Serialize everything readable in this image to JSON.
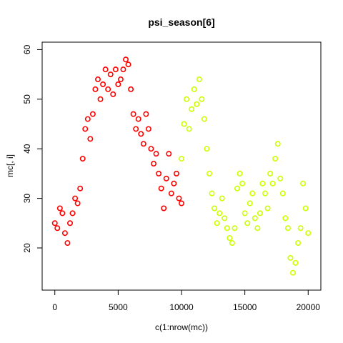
{
  "chart_data": {
    "type": "scatter",
    "title": "psi_season[6]",
    "xlabel": "c(1:nrow(mc))",
    "ylabel": "mc[, i]",
    "xlim": [
      -1000,
      21000
    ],
    "ylim": [
      11.5,
      61.5
    ],
    "x_ticks": [
      0,
      5000,
      10000,
      15000,
      20000
    ],
    "x_tick_labels": [
      "0",
      "5000",
      "10000",
      "15000",
      "20000"
    ],
    "y_ticks": [
      20,
      30,
      40,
      50,
      60
    ],
    "y_tick_labels": [
      "20",
      "30",
      "40",
      "50",
      "60"
    ],
    "grid": false,
    "legend": "none",
    "marker": "open-circle",
    "series": [
      {
        "color": "#ff0000",
        "x": [
          0,
          200,
          400,
          600,
          800,
          1000,
          1200,
          1400,
          1600,
          1800,
          2000,
          2200,
          2400,
          2600,
          2800,
          3000,
          3200,
          3400,
          3600,
          3800,
          4000,
          4200,
          4400,
          4600,
          4800,
          5000,
          5200,
          5400,
          5600,
          5800,
          6000,
          6200,
          6400,
          6600,
          6800,
          7000,
          7200,
          7400,
          7600,
          7800,
          8000,
          8200,
          8400,
          8600,
          8800,
          9000,
          9200,
          9400,
          9600,
          9800,
          10000
        ],
        "y": [
          25,
          24,
          28,
          27,
          23,
          21,
          25,
          27,
          30,
          29,
          32,
          38,
          44,
          46,
          42,
          47,
          52,
          54,
          50,
          53,
          56,
          52,
          55,
          51,
          56,
          53,
          54,
          56,
          58,
          57,
          52,
          47,
          44,
          46,
          43,
          41,
          47,
          44,
          40,
          37,
          39,
          35,
          32,
          28,
          34,
          39,
          31,
          33,
          35,
          30,
          29
        ]
      },
      {
        "color": "#ccff00",
        "x": [
          10000,
          10200,
          10400,
          10600,
          10800,
          11000,
          11200,
          11400,
          11600,
          11800,
          12000,
          12200,
          12400,
          12600,
          12800,
          13000,
          13200,
          13400,
          13600,
          13800,
          14000,
          14200,
          14400,
          14600,
          14800,
          15000,
          15200,
          15400,
          15600,
          15800,
          16000,
          16200,
          16400,
          16600,
          16800,
          17000,
          17200,
          17400,
          17600,
          17800,
          18000,
          18200,
          18400,
          18600,
          18800,
          19000,
          19200,
          19400,
          19600,
          19800,
          20000
        ],
        "y": [
          38,
          45,
          50,
          44,
          48,
          52,
          49,
          54,
          50,
          46,
          40,
          35,
          31,
          28,
          25,
          27,
          30,
          26,
          24,
          22,
          21,
          24,
          32,
          35,
          33,
          27,
          25,
          29,
          31,
          26,
          24,
          27,
          33,
          31,
          28,
          35,
          33,
          38,
          41,
          34,
          31,
          26,
          24,
          18,
          15,
          17,
          21,
          24,
          33,
          28,
          23
        ]
      }
    ]
  }
}
